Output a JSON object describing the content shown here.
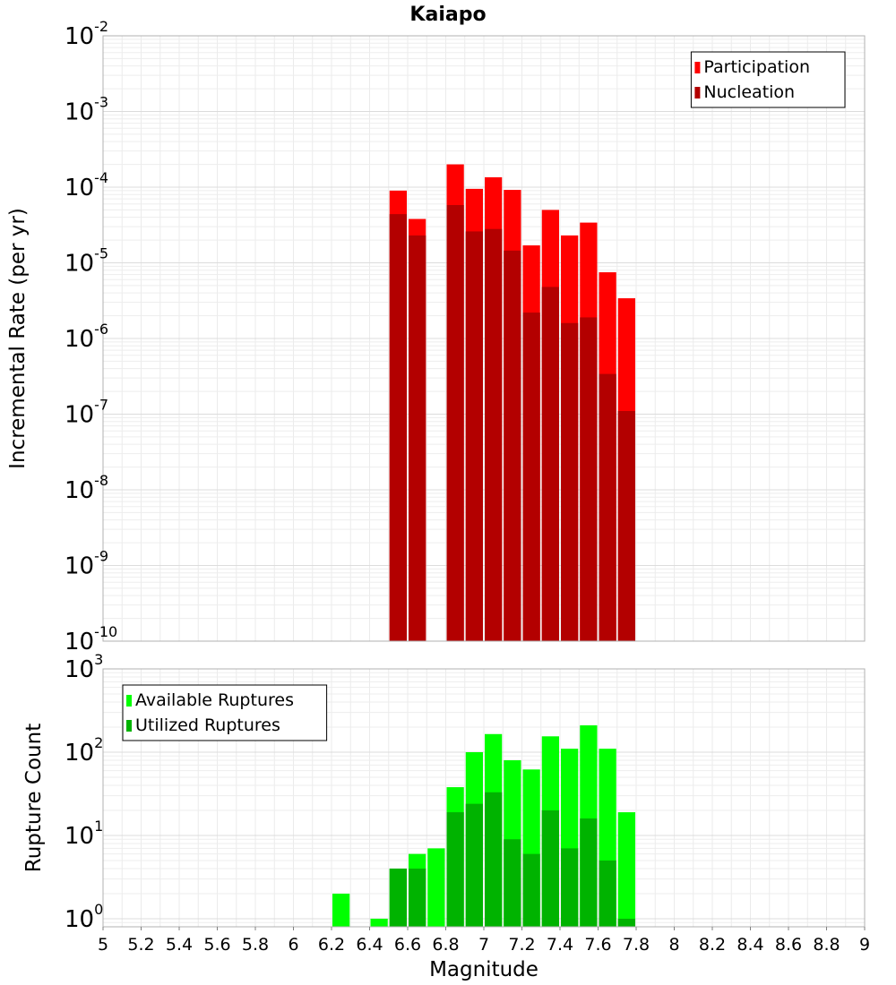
{
  "chart_data": [
    {
      "type": "bar",
      "title": "Kaiapo",
      "xlabel": "",
      "ylabel": "Incremental Rate (per yr)",
      "yscale": "log",
      "xlim": [
        5,
        9
      ],
      "ylim": [
        1e-10,
        0.01
      ],
      "bar_width": 0.1,
      "legend_position": "top-right",
      "grid": true,
      "y_ticks": [
        {
          "exp": "-10",
          "value": 1e-10
        },
        {
          "exp": "-9",
          "value": 1e-09
        },
        {
          "exp": "-8",
          "value": 1e-08
        },
        {
          "exp": "-7",
          "value": 1e-07
        },
        {
          "exp": "-6",
          "value": 1e-06
        },
        {
          "exp": "-5",
          "value": 1e-05
        },
        {
          "exp": "-4",
          "value": 0.0001
        },
        {
          "exp": "-3",
          "value": 0.001
        },
        {
          "exp": "-2",
          "value": 0.01
        }
      ],
      "series": [
        {
          "name": "Participation",
          "color": "#ff0000",
          "x": [
            6.55,
            6.65,
            6.85,
            6.95,
            7.05,
            7.15,
            7.25,
            7.35,
            7.45,
            7.55,
            7.65,
            7.75
          ],
          "values": [
            9e-05,
            3.8e-05,
            0.0002,
            9.5e-05,
            0.000135,
            9.2e-05,
            1.7e-05,
            5e-05,
            2.3e-05,
            3.4e-05,
            7.5e-06,
            3.4e-06
          ]
        },
        {
          "name": "Nucleation",
          "color": "#b30000",
          "x": [
            6.55,
            6.65,
            6.85,
            6.95,
            7.05,
            7.15,
            7.25,
            7.35,
            7.45,
            7.55,
            7.65,
            7.75
          ],
          "values": [
            4.4e-05,
            2.3e-05,
            5.8e-05,
            2.6e-05,
            2.8e-05,
            1.45e-05,
            2.2e-06,
            4.8e-06,
            1.6e-06,
            1.9e-06,
            3.4e-07,
            1.1e-07
          ]
        }
      ]
    },
    {
      "type": "bar",
      "title": "",
      "xlabel": "Magnitude",
      "ylabel": "Rupture Count",
      "yscale": "log",
      "xlim": [
        5,
        9
      ],
      "ylim": [
        0.8,
        1000
      ],
      "bar_width": 0.1,
      "legend_position": "top-left",
      "grid": true,
      "x_ticks": [
        "5",
        "5.2",
        "5.4",
        "5.6",
        "5.8",
        "6",
        "6.2",
        "6.4",
        "6.6",
        "6.8",
        "7",
        "7.2",
        "7.4",
        "7.6",
        "7.8",
        "8",
        "8.2",
        "8.4",
        "8.6",
        "8.8",
        "9"
      ],
      "y_ticks": [
        {
          "exp": "0",
          "value": 1
        },
        {
          "exp": "1",
          "value": 10
        },
        {
          "exp": "2",
          "value": 100
        },
        {
          "exp": "3",
          "value": 1000
        }
      ],
      "series": [
        {
          "name": "Available Ruptures",
          "color": "#00ff00",
          "x": [
            6.25,
            6.45,
            6.55,
            6.65,
            6.75,
            6.85,
            6.95,
            7.05,
            7.15,
            7.25,
            7.35,
            7.45,
            7.55,
            7.65,
            7.75
          ],
          "values": [
            2,
            1,
            4,
            6,
            7,
            38,
            100,
            165,
            80,
            62,
            155,
            110,
            210,
            110,
            19
          ]
        },
        {
          "name": "Utilized Ruptures",
          "color": "#00b300",
          "x": [
            6.55,
            6.65,
            6.85,
            6.95,
            7.05,
            7.15,
            7.25,
            7.35,
            7.45,
            7.55,
            7.65,
            7.75
          ],
          "values": [
            4,
            4,
            19,
            24,
            33,
            9,
            6,
            20,
            7,
            16,
            5,
            1
          ]
        }
      ]
    }
  ],
  "labels": {
    "base": "10"
  }
}
